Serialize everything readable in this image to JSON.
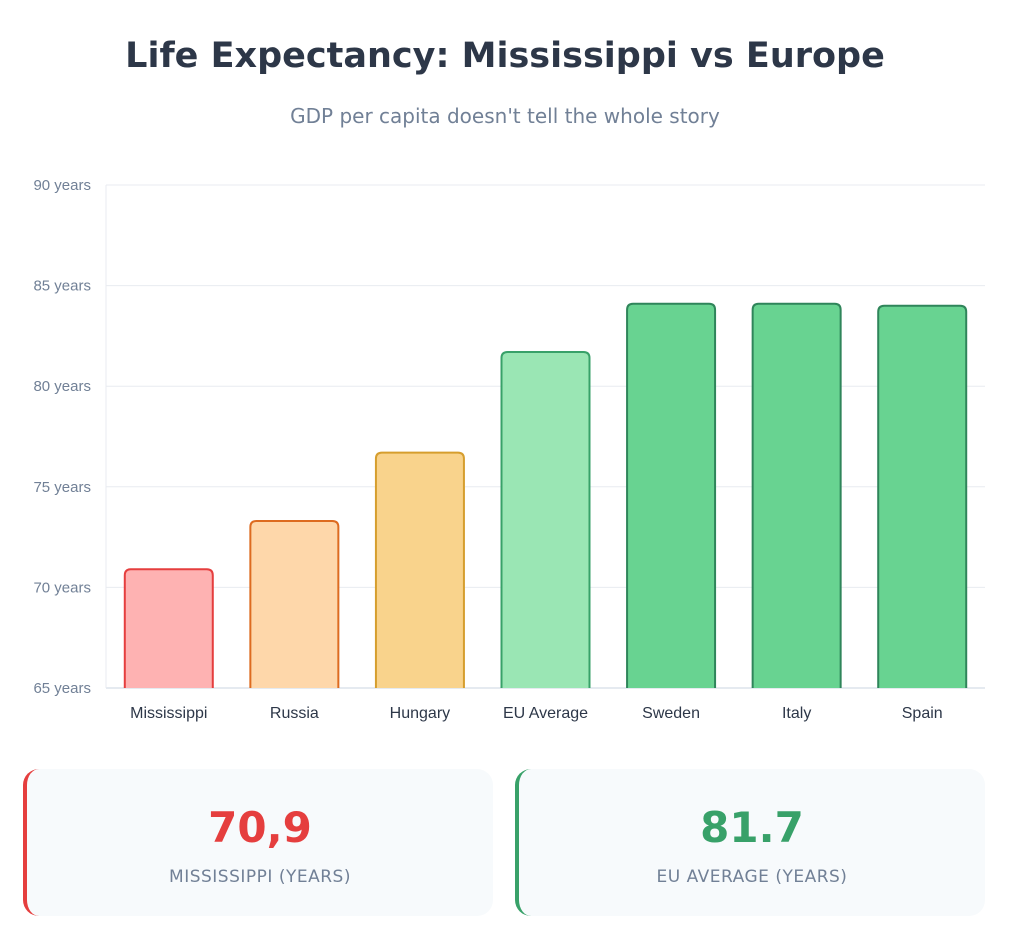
{
  "header": {
    "title": "Life Expectancy: Mississippi vs Europe",
    "subtitle": "GDP per capita doesn't tell the whole story"
  },
  "chart_data": {
    "type": "bar",
    "categories": [
      "Mississippi",
      "Russia",
      "Hungary",
      "EU Average",
      "Sweden",
      "Italy",
      "Spain"
    ],
    "values": [
      70.9,
      73.3,
      76.7,
      81.7,
      84.1,
      84.1,
      84.0
    ],
    "ylim": [
      65,
      90
    ],
    "yticks": [
      90,
      85,
      80,
      75,
      70,
      65
    ],
    "ytick_labels": [
      "90 years",
      "85 years",
      "80 years",
      "75 years",
      "70 years",
      "65 years"
    ],
    "grid": true,
    "bar_colors": [
      {
        "fill": "#feb2b2",
        "stroke": "#e53e3e"
      },
      {
        "fill": "#fed7aa",
        "stroke": "#dd6b20"
      },
      {
        "fill": "#f9d38c",
        "stroke": "#d69e2e"
      },
      {
        "fill": "#9ae6b4",
        "stroke": "#38a169"
      },
      {
        "fill": "#68d391",
        "stroke": "#2f855a"
      },
      {
        "fill": "#68d391",
        "stroke": "#2f855a"
      },
      {
        "fill": "#68d391",
        "stroke": "#2f855a"
      }
    ]
  },
  "stats": {
    "mississippi": {
      "value": "70,9",
      "label": "MISSISSIPPI (YEARS)",
      "color": "#e53e3e"
    },
    "eu": {
      "value": "81.7",
      "label": "EU AVERAGE (YEARS)",
      "color": "#38a169"
    }
  }
}
